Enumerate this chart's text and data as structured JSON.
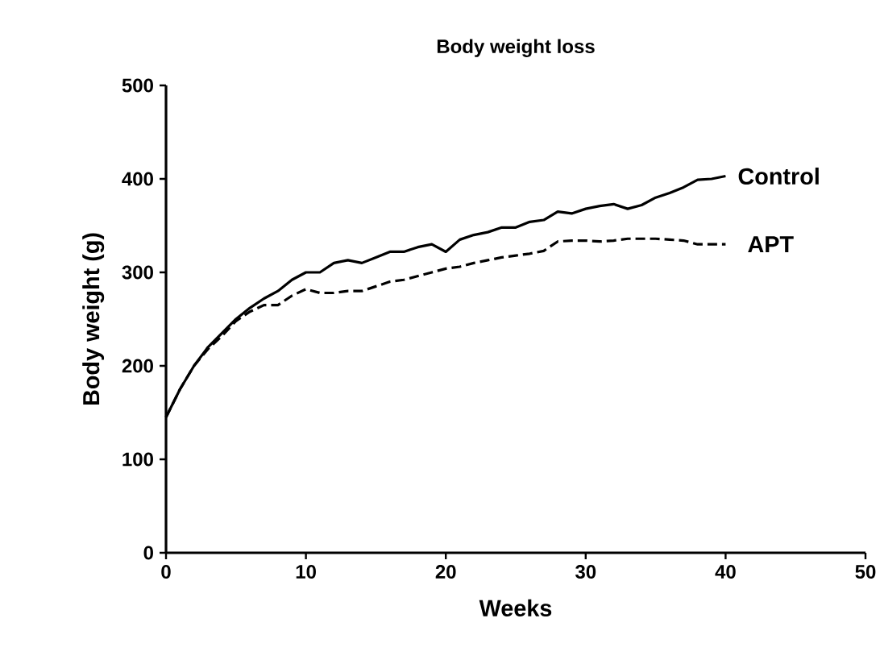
{
  "chart_data": {
    "type": "line",
    "title": "Body weight loss",
    "xlabel": "Weeks",
    "ylabel": "Body weight (g)",
    "x": [
      0,
      1,
      2,
      3,
      4,
      5,
      6,
      7,
      8,
      9,
      10,
      11,
      12,
      13,
      14,
      15,
      16,
      17,
      18,
      19,
      20,
      21,
      22,
      23,
      24,
      25,
      26,
      27,
      28,
      29,
      30,
      31,
      32,
      33,
      34,
      35,
      36,
      37,
      38,
      39,
      40
    ],
    "series": [
      {
        "name": "Control",
        "color": "#000000",
        "line_style": "solid",
        "values": [
          145,
          175,
          200,
          220,
          235,
          250,
          262,
          272,
          280,
          292,
          300,
          300,
          310,
          313,
          310,
          316,
          322,
          322,
          327,
          330,
          322,
          335,
          340,
          343,
          348,
          348,
          354,
          356,
          365,
          363,
          368,
          371,
          373,
          368,
          372,
          380,
          385,
          391,
          399,
          400,
          403
        ]
      },
      {
        "name": "APT",
        "color": "#000000",
        "line_style": "dashed",
        "values": [
          145,
          175,
          200,
          218,
          232,
          248,
          258,
          265,
          265,
          275,
          282,
          278,
          278,
          280,
          280,
          285,
          290,
          292,
          296,
          300,
          304,
          306,
          310,
          313,
          316,
          318,
          320,
          323,
          333,
          334,
          334,
          333,
          334,
          336,
          336,
          336,
          335,
          334,
          330,
          330,
          330
        ]
      }
    ],
    "xlim": [
      0,
      50
    ],
    "xticks": [
      0,
      10,
      20,
      30,
      40,
      50
    ],
    "ylim": [
      0,
      500
    ],
    "yticks": [
      0,
      100,
      200,
      300,
      400,
      500
    ],
    "grid": false,
    "legend": false,
    "marker": "none"
  }
}
